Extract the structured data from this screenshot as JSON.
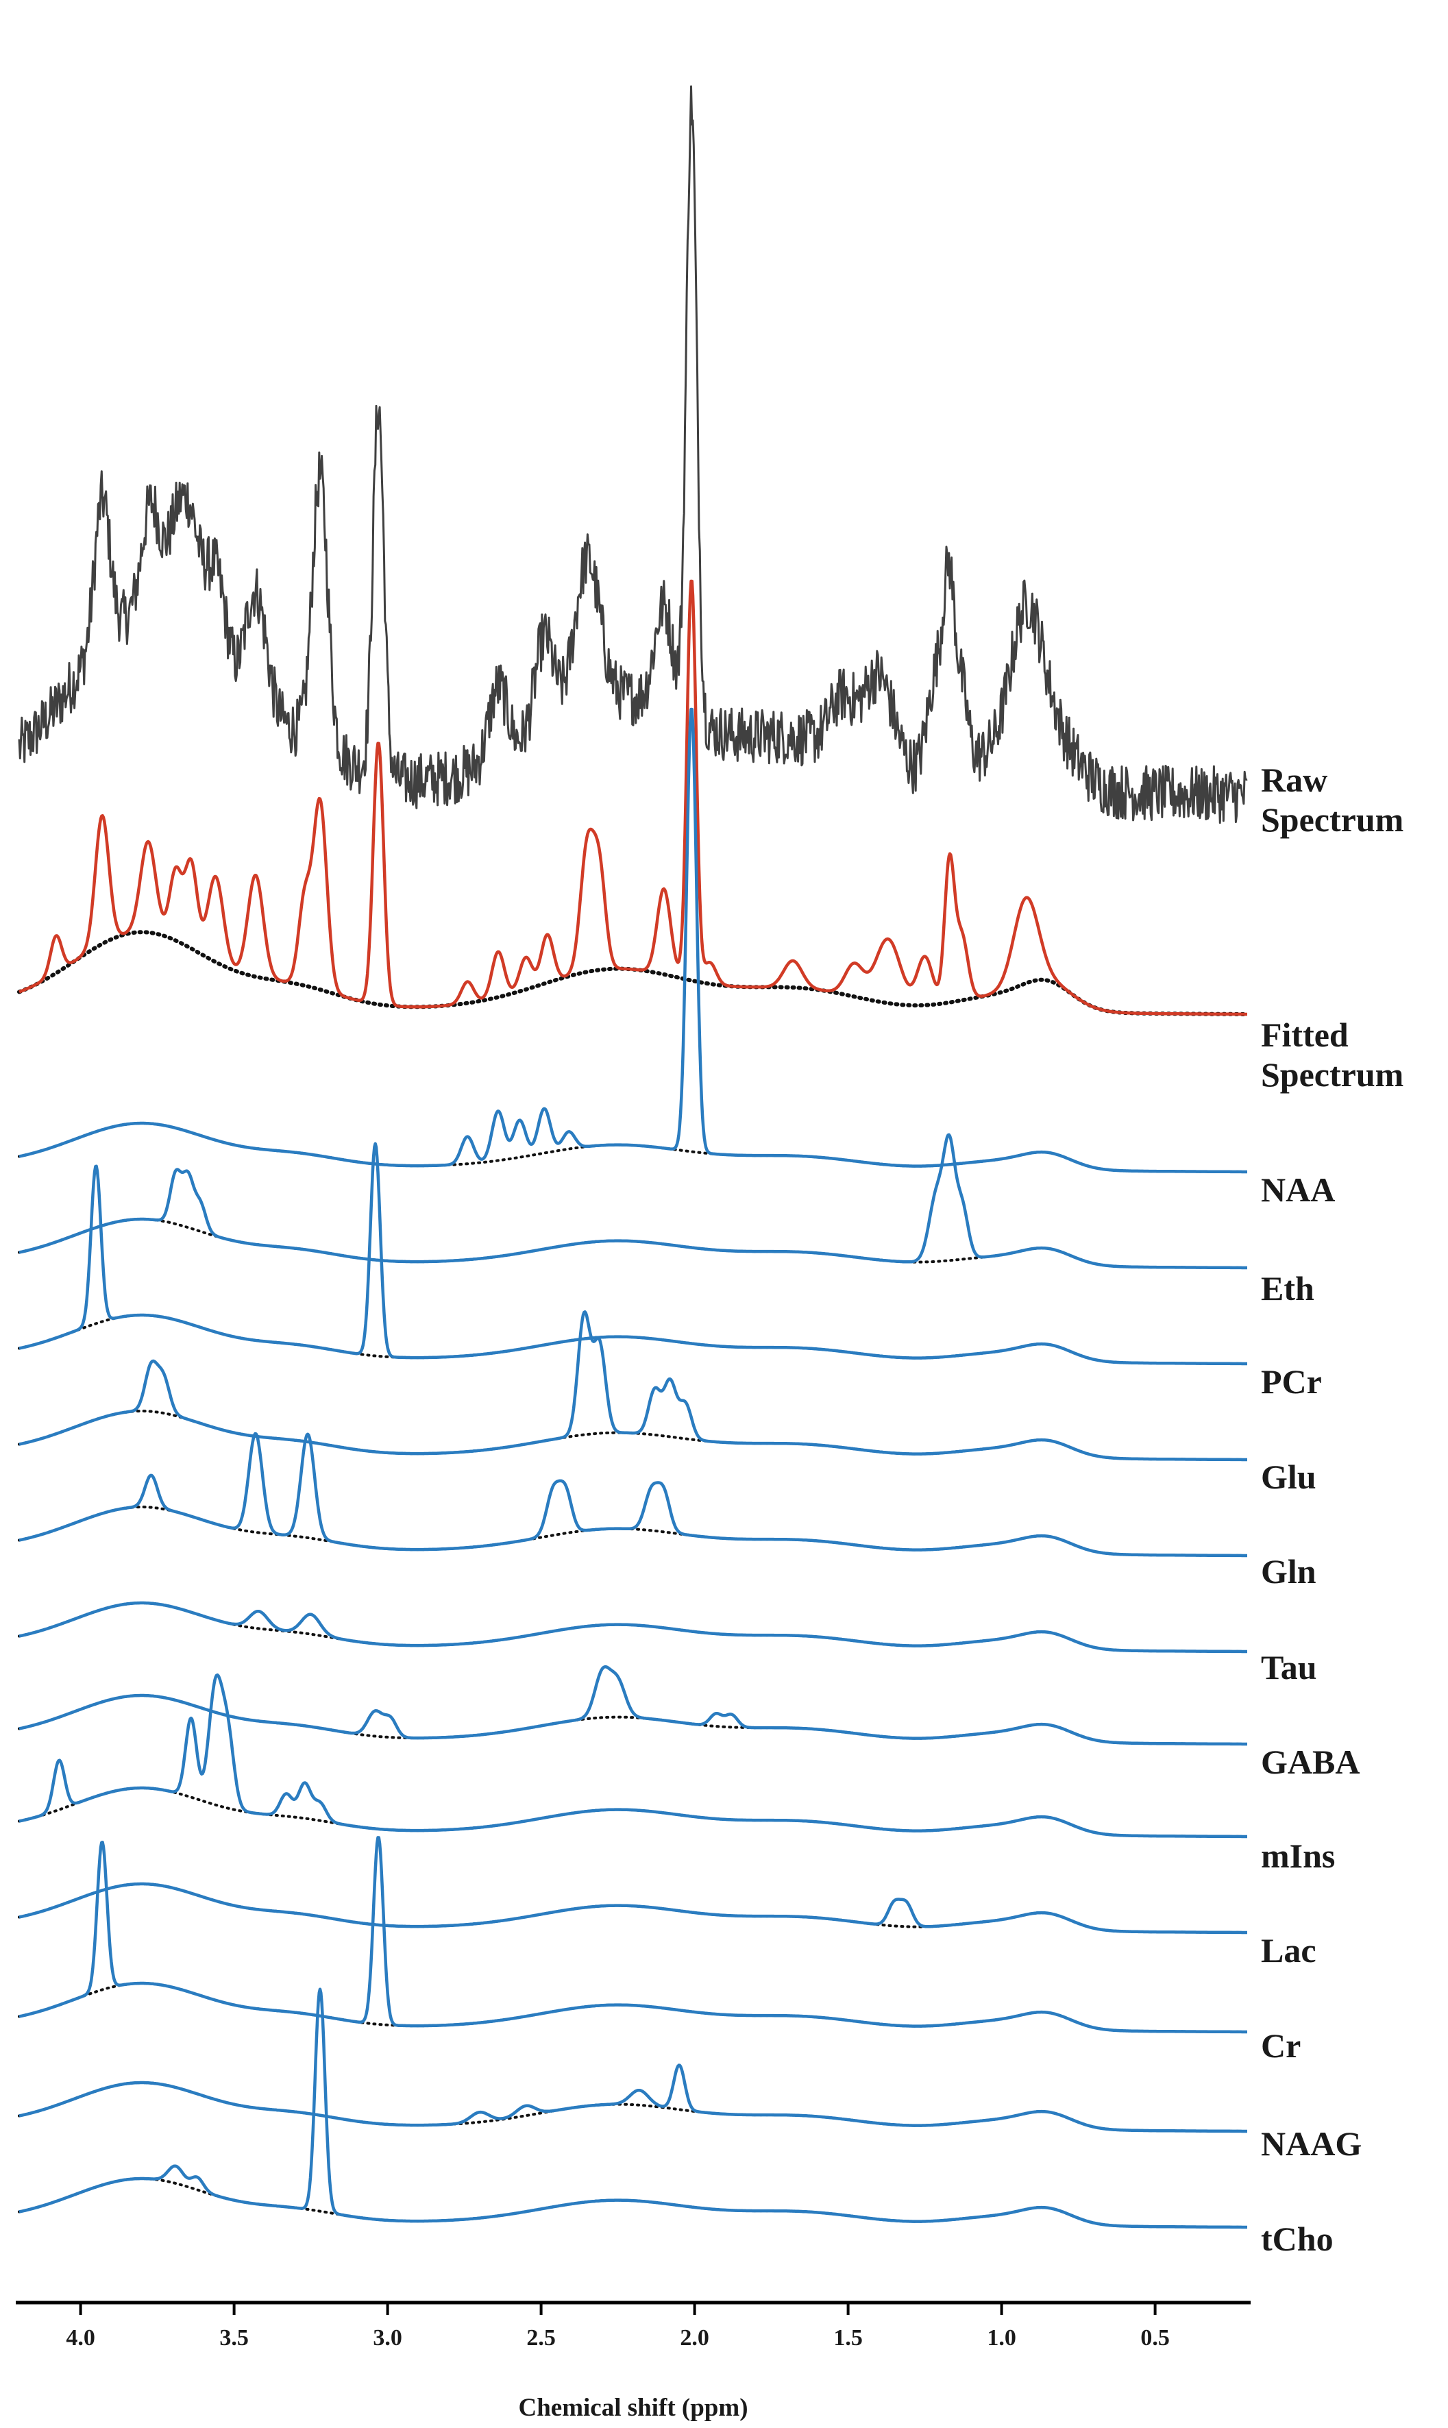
{
  "chart_data": {
    "type": "line",
    "xlabel": "Chemical shift (ppm)",
    "ylabel": "",
    "xlim": [
      4.2,
      0.2
    ],
    "x_reversed": true,
    "xticks": [
      {
        "value": 4.0,
        "label": "4.0"
      },
      {
        "value": 3.5,
        "label": "3.5"
      },
      {
        "value": 3.0,
        "label": "3.0"
      },
      {
        "value": 2.5,
        "label": "2.5"
      },
      {
        "value": 2.0,
        "label": "2.0"
      },
      {
        "value": 1.5,
        "label": "1.5"
      },
      {
        "value": 1.0,
        "label": "1.0"
      },
      {
        "value": 0.5,
        "label": "0.5"
      }
    ],
    "grid": false,
    "stacked_offset": true,
    "baseline": {
      "description": "shared macromolecular baseline shown dotted under every fitted trace",
      "peaks": [
        {
          "ppm": 3.8,
          "amp": 1.0,
          "width": 0.22
        },
        {
          "ppm": 3.3,
          "amp": 0.25,
          "width": 0.15
        },
        {
          "ppm": 2.25,
          "amp": 0.55,
          "width": 0.25
        },
        {
          "ppm": 1.65,
          "amp": 0.28,
          "width": 0.2
        },
        {
          "ppm": 1.0,
          "amp": 0.22,
          "width": 0.15
        },
        {
          "ppm": 0.85,
          "amp": 0.3,
          "width": 0.08
        }
      ]
    },
    "series": [
      {
        "name": "Raw Spectrum",
        "label_lines": [
          "Raw",
          "Spectrum"
        ],
        "color": "#404040",
        "noisy": true,
        "show_baseline": false,
        "peaks": [
          {
            "ppm": 3.93,
            "amp": 1.4,
            "width": 0.025
          },
          {
            "ppm": 3.77,
            "amp": 1.1,
            "width": 0.03
          },
          {
            "ppm": 3.69,
            "amp": 0.9,
            "width": 0.03
          },
          {
            "ppm": 3.64,
            "amp": 1.1,
            "width": 0.03
          },
          {
            "ppm": 3.56,
            "amp": 1.1,
            "width": 0.035
          },
          {
            "ppm": 3.43,
            "amp": 1.2,
            "width": 0.035
          },
          {
            "ppm": 3.22,
            "amp": 2.6,
            "width": 0.025
          },
          {
            "ppm": 3.03,
            "amp": 3.6,
            "width": 0.018
          },
          {
            "ppm": 2.64,
            "amp": 0.7,
            "width": 0.03
          },
          {
            "ppm": 2.49,
            "amp": 0.9,
            "width": 0.03
          },
          {
            "ppm": 2.35,
            "amp": 1.4,
            "width": 0.04
          },
          {
            "ppm": 2.1,
            "amp": 1.0,
            "width": 0.03
          },
          {
            "ppm": 2.01,
            "amp": 6.0,
            "width": 0.017
          },
          {
            "ppm": 1.52,
            "amp": 0.5,
            "width": 0.04
          },
          {
            "ppm": 1.4,
            "amp": 0.9,
            "width": 0.05
          },
          {
            "ppm": 1.21,
            "amp": 1.0,
            "width": 0.03
          },
          {
            "ppm": 1.17,
            "amp": 1.5,
            "width": 0.018
          },
          {
            "ppm": 1.13,
            "amp": 0.7,
            "width": 0.02
          },
          {
            "ppm": 0.92,
            "amp": 1.2,
            "width": 0.05
          }
        ]
      },
      {
        "name": "Fitted Spectrum",
        "label_lines": [
          "Fitted",
          "Spectrum"
        ],
        "color": "#d13b26",
        "noisy": false,
        "show_baseline": true,
        "peaks": [
          {
            "ppm": 4.08,
            "amp": 0.7,
            "width": 0.018
          },
          {
            "ppm": 3.93,
            "amp": 2.4,
            "width": 0.022
          },
          {
            "ppm": 3.78,
            "amp": 1.7,
            "width": 0.025
          },
          {
            "ppm": 3.69,
            "amp": 1.3,
            "width": 0.02
          },
          {
            "ppm": 3.64,
            "amp": 1.6,
            "width": 0.02
          },
          {
            "ppm": 3.56,
            "amp": 1.6,
            "width": 0.025
          },
          {
            "ppm": 3.43,
            "amp": 1.9,
            "width": 0.025
          },
          {
            "ppm": 3.27,
            "amp": 1.6,
            "width": 0.02
          },
          {
            "ppm": 3.22,
            "amp": 3.5,
            "width": 0.022
          },
          {
            "ppm": 3.03,
            "amp": 4.9,
            "width": 0.017
          },
          {
            "ppm": 2.74,
            "amp": 0.4,
            "width": 0.02
          },
          {
            "ppm": 2.64,
            "amp": 0.85,
            "width": 0.02
          },
          {
            "ppm": 2.55,
            "amp": 0.6,
            "width": 0.02
          },
          {
            "ppm": 2.48,
            "amp": 0.9,
            "width": 0.02
          },
          {
            "ppm": 2.35,
            "amp": 2.3,
            "width": 0.022
          },
          {
            "ppm": 2.31,
            "amp": 1.8,
            "width": 0.02
          },
          {
            "ppm": 2.1,
            "amp": 1.6,
            "width": 0.022
          },
          {
            "ppm": 2.01,
            "amp": 7.5,
            "width": 0.015
          },
          {
            "ppm": 1.95,
            "amp": 0.4,
            "width": 0.02
          },
          {
            "ppm": 1.68,
            "amp": 0.5,
            "width": 0.03
          },
          {
            "ppm": 1.48,
            "amp": 0.6,
            "width": 0.03
          },
          {
            "ppm": 1.37,
            "amp": 1.2,
            "width": 0.04
          },
          {
            "ppm": 1.25,
            "amp": 0.9,
            "width": 0.025
          },
          {
            "ppm": 1.17,
            "amp": 2.6,
            "width": 0.016
          },
          {
            "ppm": 1.13,
            "amp": 1.2,
            "width": 0.02
          },
          {
            "ppm": 0.92,
            "amp": 1.6,
            "width": 0.04
          }
        ]
      },
      {
        "name": "NAA",
        "label_lines": [
          "NAA"
        ],
        "color": "#2a7cc0",
        "noisy": false,
        "show_baseline": true,
        "peaks": [
          {
            "ppm": 2.74,
            "amp": 0.55,
            "width": 0.02
          },
          {
            "ppm": 2.64,
            "amp": 1.0,
            "width": 0.02
          },
          {
            "ppm": 2.57,
            "amp": 0.75,
            "width": 0.02
          },
          {
            "ppm": 2.49,
            "amp": 0.9,
            "width": 0.02
          },
          {
            "ppm": 2.41,
            "amp": 0.35,
            "width": 0.02
          },
          {
            "ppm": 2.01,
            "amp": 9.0,
            "width": 0.016
          }
        ]
      },
      {
        "name": "Eth",
        "label_lines": [
          "Eth"
        ],
        "color": "#2a7cc0",
        "noisy": false,
        "show_baseline": true,
        "peaks": [
          {
            "ppm": 3.69,
            "amp": 1.0,
            "width": 0.018
          },
          {
            "ppm": 3.65,
            "amp": 1.0,
            "width": 0.018
          },
          {
            "ppm": 3.61,
            "amp": 0.55,
            "width": 0.018
          },
          {
            "ppm": 1.21,
            "amp": 1.4,
            "width": 0.025
          },
          {
            "ppm": 1.17,
            "amp": 2.0,
            "width": 0.018
          },
          {
            "ppm": 1.13,
            "amp": 1.1,
            "width": 0.02
          }
        ]
      },
      {
        "name": "PCr",
        "label_lines": [
          "PCr"
        ],
        "color": "#2a7cc0",
        "noisy": false,
        "show_baseline": true,
        "peaks": [
          {
            "ppm": 3.95,
            "amp": 3.2,
            "width": 0.016
          },
          {
            "ppm": 3.04,
            "amp": 4.3,
            "width": 0.016
          }
        ]
      },
      {
        "name": "Glu",
        "label_lines": [
          "Glu"
        ],
        "color": "#2a7cc0",
        "noisy": false,
        "show_baseline": true,
        "peaks": [
          {
            "ppm": 3.77,
            "amp": 0.9,
            "width": 0.02
          },
          {
            "ppm": 3.73,
            "amp": 0.7,
            "width": 0.02
          },
          {
            "ppm": 2.36,
            "amp": 2.4,
            "width": 0.02
          },
          {
            "ppm": 2.31,
            "amp": 1.8,
            "width": 0.02
          },
          {
            "ppm": 2.13,
            "amp": 0.9,
            "width": 0.02
          },
          {
            "ppm": 2.08,
            "amp": 1.1,
            "width": 0.02
          },
          {
            "ppm": 2.03,
            "amp": 0.7,
            "width": 0.02
          }
        ]
      },
      {
        "name": "Gln",
        "label_lines": [
          "Gln"
        ],
        "color": "#2a7cc0",
        "noisy": false,
        "show_baseline": true,
        "peaks": [
          {
            "ppm": 3.77,
            "amp": 0.65,
            "width": 0.02
          },
          {
            "ppm": 3.43,
            "amp": 2.0,
            "width": 0.022
          },
          {
            "ppm": 3.26,
            "amp": 2.1,
            "width": 0.022
          },
          {
            "ppm": 2.46,
            "amp": 0.9,
            "width": 0.022
          },
          {
            "ppm": 2.42,
            "amp": 0.8,
            "width": 0.02
          },
          {
            "ppm": 2.14,
            "amp": 0.8,
            "width": 0.022
          },
          {
            "ppm": 2.1,
            "amp": 0.75,
            "width": 0.02
          }
        ]
      },
      {
        "name": "Tau",
        "label_lines": [
          "Tau"
        ],
        "color": "#2a7cc0",
        "noisy": false,
        "show_baseline": true,
        "peaks": [
          {
            "ppm": 3.42,
            "amp": 0.35,
            "width": 0.03
          },
          {
            "ppm": 3.25,
            "amp": 0.4,
            "width": 0.03
          }
        ]
      },
      {
        "name": "GABA",
        "label_lines": [
          "GABA"
        ],
        "color": "#2a7cc0",
        "noisy": false,
        "show_baseline": true,
        "peaks": [
          {
            "ppm": 3.04,
            "amp": 0.5,
            "width": 0.025
          },
          {
            "ppm": 2.99,
            "amp": 0.35,
            "width": 0.02
          },
          {
            "ppm": 2.3,
            "amp": 0.9,
            "width": 0.025
          },
          {
            "ppm": 2.25,
            "amp": 0.7,
            "width": 0.025
          },
          {
            "ppm": 1.93,
            "amp": 0.25,
            "width": 0.02
          },
          {
            "ppm": 1.88,
            "amp": 0.25,
            "width": 0.02
          }
        ]
      },
      {
        "name": "mIns",
        "label_lines": [
          "mIns"
        ],
        "color": "#2a7cc0",
        "noisy": false,
        "show_baseline": true,
        "peaks": [
          {
            "ppm": 4.07,
            "amp": 1.0,
            "width": 0.018
          },
          {
            "ppm": 3.64,
            "amp": 1.6,
            "width": 0.018
          },
          {
            "ppm": 3.56,
            "amp": 2.4,
            "width": 0.022
          },
          {
            "ppm": 3.52,
            "amp": 1.4,
            "width": 0.02
          },
          {
            "ppm": 3.33,
            "amp": 0.45,
            "width": 0.02
          },
          {
            "ppm": 3.27,
            "amp": 0.7,
            "width": 0.02
          },
          {
            "ppm": 3.22,
            "amp": 0.35,
            "width": 0.02
          }
        ]
      },
      {
        "name": "Lac",
        "label_lines": [
          "Lac"
        ],
        "color": "#2a7cc0",
        "noisy": false,
        "show_baseline": true,
        "peaks": [
          {
            "ppm": 1.35,
            "amp": 0.45,
            "width": 0.02
          },
          {
            "ppm": 1.31,
            "amp": 0.45,
            "width": 0.02
          }
        ]
      },
      {
        "name": "Cr",
        "label_lines": [
          "Cr"
        ],
        "color": "#2a7cc0",
        "noisy": false,
        "show_baseline": true,
        "peaks": [
          {
            "ppm": 3.93,
            "amp": 3.0,
            "width": 0.016
          },
          {
            "ppm": 3.03,
            "amp": 3.8,
            "width": 0.016
          }
        ]
      },
      {
        "name": "NAAG",
        "label_lines": [
          "NAAG"
        ],
        "color": "#2a7cc0",
        "noisy": false,
        "show_baseline": true,
        "peaks": [
          {
            "ppm": 2.7,
            "amp": 0.2,
            "width": 0.03
          },
          {
            "ppm": 2.55,
            "amp": 0.2,
            "width": 0.03
          },
          {
            "ppm": 2.18,
            "amp": 0.3,
            "width": 0.03
          },
          {
            "ppm": 2.05,
            "amp": 0.9,
            "width": 0.018
          }
        ]
      },
      {
        "name": "tCho",
        "label_lines": [
          "tCho"
        ],
        "color": "#2a7cc0",
        "noisy": false,
        "show_baseline": true,
        "peaks": [
          {
            "ppm": 3.69,
            "amp": 0.35,
            "width": 0.025
          },
          {
            "ppm": 3.62,
            "amp": 0.25,
            "width": 0.02
          },
          {
            "ppm": 3.22,
            "amp": 4.5,
            "width": 0.016
          }
        ]
      }
    ]
  }
}
